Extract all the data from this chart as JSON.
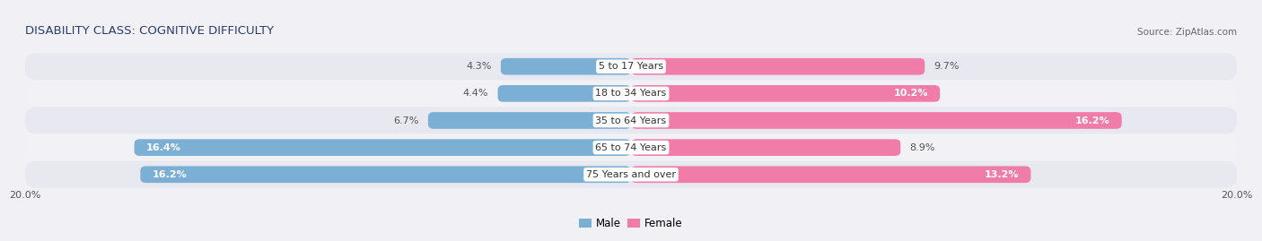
{
  "title": "DISABILITY CLASS: COGNITIVE DIFFICULTY",
  "source": "Source: ZipAtlas.com",
  "categories": [
    "5 to 17 Years",
    "18 to 34 Years",
    "35 to 64 Years",
    "65 to 74 Years",
    "75 Years and over"
  ],
  "male_values": [
    4.3,
    4.4,
    6.7,
    16.4,
    16.2
  ],
  "female_values": [
    9.7,
    10.2,
    16.2,
    8.9,
    13.2
  ],
  "max_value": 20.0,
  "male_color": "#7bafd4",
  "female_color": "#f07caa",
  "male_label_inside_color": "#ffffff",
  "male_label_outside_color": "#555555",
  "female_label_inside_color": "#ffffff",
  "female_label_outside_color": "#555555",
  "row_colors": [
    "#e8e8f0",
    "#f2f2f6",
    "#e8e8f0",
    "#f2f2f6",
    "#e8e8f0"
  ],
  "bg_color": "#f0f0f5",
  "title_color": "#2c3e6b",
  "source_color": "#666666",
  "cat_label_color": "#333333",
  "title_fontsize": 9.5,
  "label_fontsize": 8.0,
  "cat_fontsize": 8.0,
  "tick_fontsize": 8.0,
  "legend_fontsize": 8.5,
  "inside_threshold": 10.0
}
